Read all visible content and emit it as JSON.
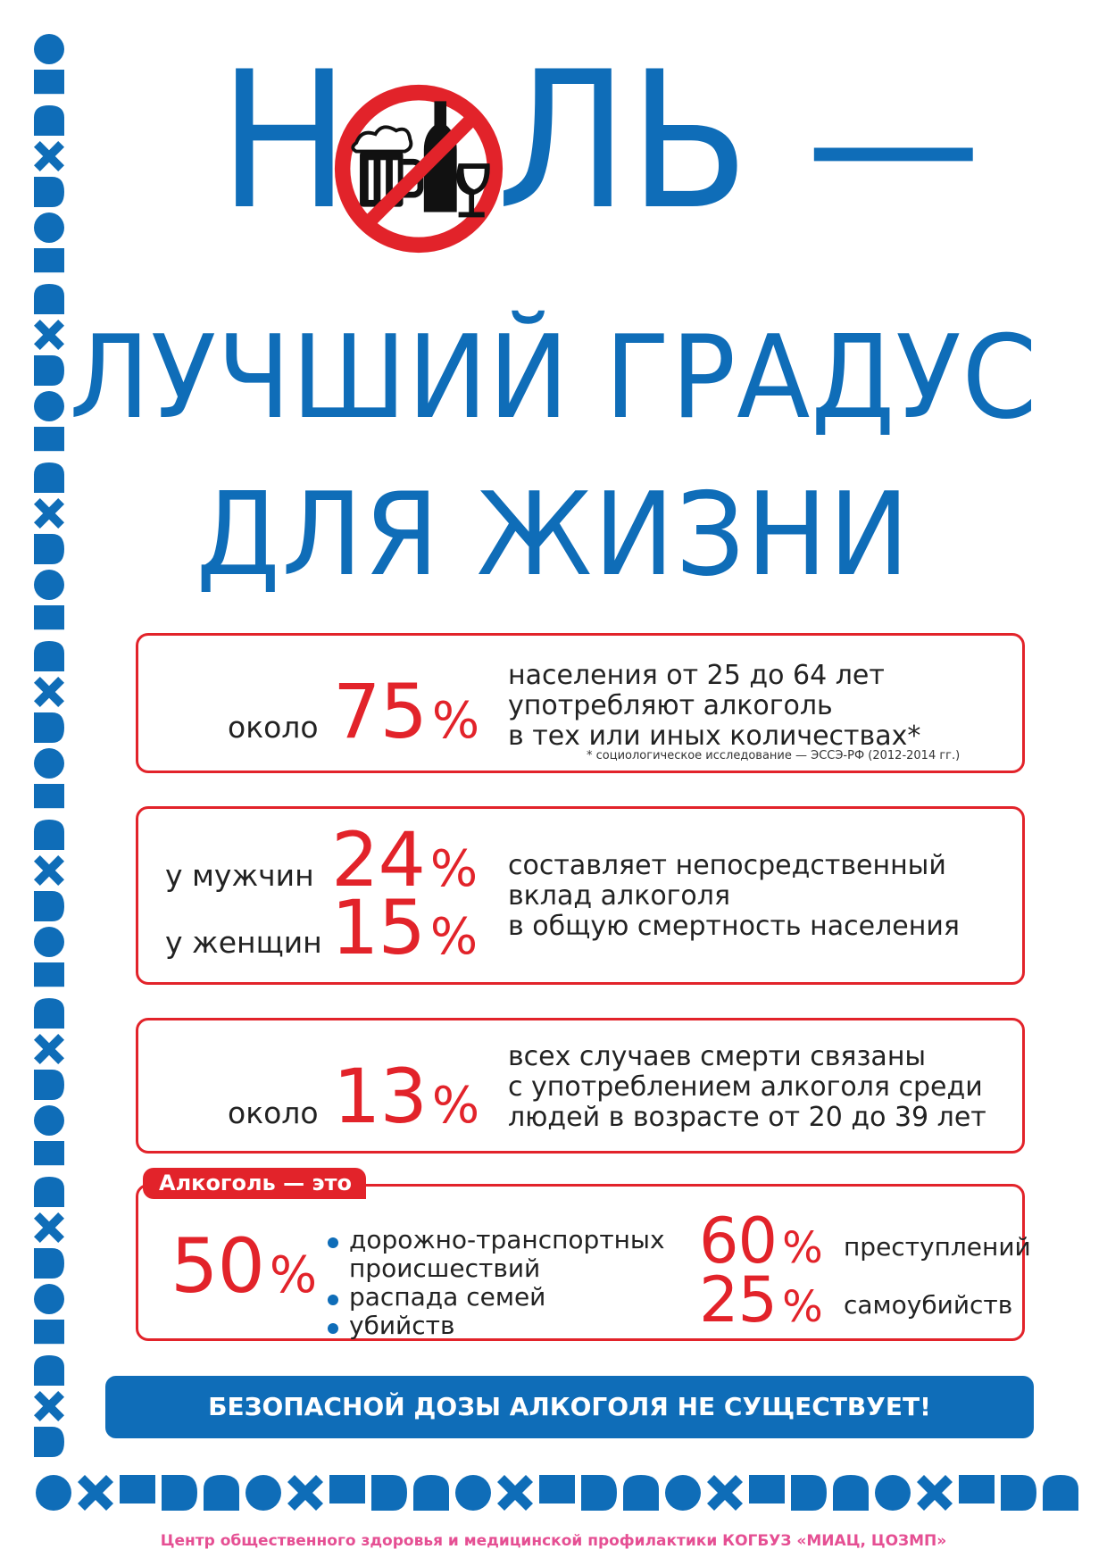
{
  "title": {
    "letter_h": "Н",
    "rest": "ЛЬ —",
    "line2": "ЛУЧШИЙ ГРАДУС",
    "line3": "ДЛЯ ЖИЗНИ"
  },
  "box1": {
    "prefix": "около",
    "value": "75",
    "percent": "%",
    "desc": [
      "населения от 25 до 64 лет",
      "употребляют алкоголь",
      "в тех или иных количествах*"
    ],
    "note": "* социологическое исследование — ЭССЭ-РФ (2012-2014 гг.)"
  },
  "box2": {
    "men_label": "у мужчин",
    "men_value": "24",
    "women_label": "у женщин",
    "women_value": "15",
    "percent": "%",
    "desc": [
      "составляет непосредственный",
      "вклад алкоголя",
      "в общую смертность населения"
    ]
  },
  "box3": {
    "prefix": "около",
    "value": "13",
    "percent": "%",
    "desc": [
      "всех случаев смерти связаны",
      "с употреблением алкоголя среди",
      "людей в возрасте от 20 до 39 лет"
    ]
  },
  "box4": {
    "tag": "Алкоголь — это",
    "left_value": "50",
    "percent": "%",
    "items": [
      "дорожно-транспортных",
      "происшествий",
      "распада семей",
      "убийств"
    ],
    "right": [
      {
        "value": "60",
        "label": "преступлений"
      },
      {
        "value": "25",
        "label": "самоубийств"
      }
    ]
  },
  "banner": "БЕЗОПАСНОЙ ДОЗЫ АЛКОГОЛЯ НЕ СУЩЕСТВУЕТ!",
  "footer": "Центр общественного здоровья и медицинской профилактики КОГБУЗ «МИАЦ, ЦОЗМП»",
  "colors": {
    "blue": "#0f6db8",
    "red": "#e2232a",
    "footer_pink": "#e54f93"
  },
  "icons": [
    "no-alcohol-sign-icon",
    "beer-mug-icon",
    "bottle-icon",
    "wine-glass-icon",
    "bullet-dot-icon"
  ]
}
